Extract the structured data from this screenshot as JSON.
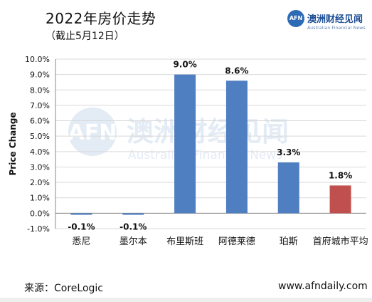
{
  "header": {
    "title": "2022年房价走势",
    "subtitle": "（截止5月12日）"
  },
  "logo": {
    "mark": "AFN",
    "name_cn": "澳洲财经见闻",
    "name_en": "Australian Financial News"
  },
  "watermark": {
    "mark": "AFN",
    "name_cn": "澳洲财经见闻",
    "name_en": "Australian Financial News"
  },
  "footer": {
    "source": "来源：CoreLogic",
    "website": "www.afndaily.com"
  },
  "colors": {
    "series_blue": "#4f7ec1",
    "highlight_red": "#c0504d",
    "grid": "#d9d9d9",
    "axis": "#888888"
  },
  "chart_data": {
    "type": "bar",
    "title": "2022年房价走势",
    "subtitle": "（截止5月12日）",
    "ylabel": "Price Change",
    "xlabel": "",
    "categories": [
      "悉尼",
      "墨尔本",
      "布里斯班",
      "阿德莱德",
      "珀斯",
      "首府城市平均"
    ],
    "values": [
      -0.1,
      -0.1,
      9.0,
      8.6,
      3.3,
      1.8
    ],
    "data_labels": [
      "-0.1%",
      "-0.1%",
      "9.0%",
      "8.6%",
      "3.3%",
      "1.8%"
    ],
    "highlight_index": 5,
    "ylim": [
      -1.0,
      10.0
    ],
    "yticks": [
      -1,
      0,
      1,
      2,
      3,
      4,
      5,
      6,
      7,
      8,
      9,
      10
    ],
    "ytick_labels": [
      "-1.0%",
      "0.0%",
      "1.0%",
      "2.0%",
      "3.0%",
      "4.0%",
      "5.0%",
      "6.0%",
      "7.0%",
      "8.0%",
      "9.0%",
      "10.0%"
    ],
    "grid": true,
    "legend": "none"
  }
}
